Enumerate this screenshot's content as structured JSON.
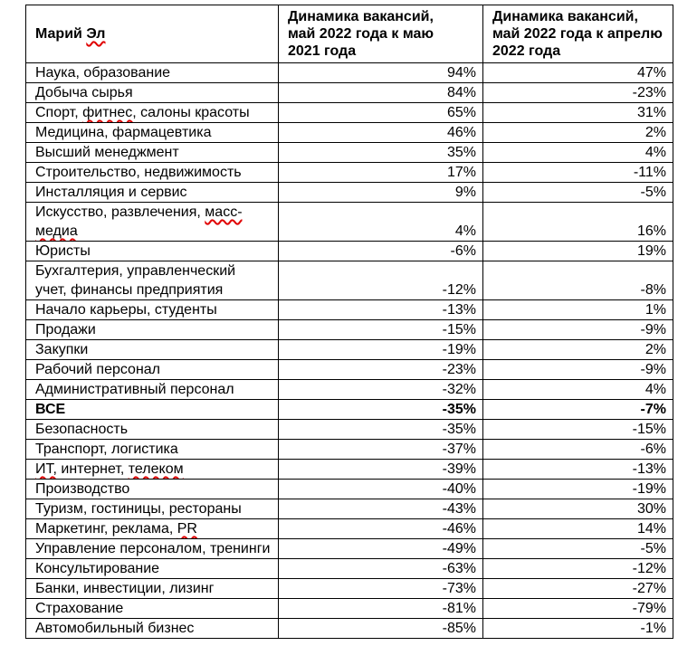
{
  "page": {
    "background": "#ffffff",
    "spellcheck_color": "#e00000",
    "border_color": "#000000"
  },
  "table": {
    "header": {
      "region": "Марий Эл",
      "region_misspelled": [
        "Эл"
      ],
      "col_yoy": "Динамика вакансий,\nмай 2022 года к маю\n2021 года",
      "col_mom": "Динамика вакансий,\nмай 2022 года к апрелю\n2022 года"
    },
    "rows": [
      {
        "category": "Наука, образование",
        "yoy": "94%",
        "mom": "47%"
      },
      {
        "category": "Добыча сырья",
        "yoy": "84%",
        "mom": "-23%"
      },
      {
        "category": "Спорт, фитнес, салоны красоты",
        "yoy": "65%",
        "mom": "31%",
        "misspelled": [
          "фитнес,"
        ]
      },
      {
        "category": "Медицина, фармацевтика",
        "yoy": "46%",
        "mom": "2%"
      },
      {
        "category": "Высший менеджмент",
        "yoy": "35%",
        "mom": "4%"
      },
      {
        "category": "Строительство, недвижимость",
        "yoy": "17%",
        "mom": "-11%"
      },
      {
        "category": "Инсталляция и сервис",
        "yoy": "9%",
        "mom": "-5%"
      },
      {
        "category": "Искусство, развлечения, масс-медиа",
        "yoy": "4%",
        "mom": "16%",
        "misspelled": [
          "масс-медиа"
        ]
      },
      {
        "category": "Юристы",
        "yoy": "-6%",
        "mom": "19%"
      },
      {
        "category": "Бухгалтерия, управленческий учет, финансы предприятия",
        "yoy": "-12%",
        "mom": "-8%"
      },
      {
        "category": "Начало карьеры, студенты",
        "yoy": "-13%",
        "mom": "1%"
      },
      {
        "category": "Продажи",
        "yoy": "-15%",
        "mom": "-9%"
      },
      {
        "category": "Закупки",
        "yoy": "-19%",
        "mom": "2%"
      },
      {
        "category": "Рабочий персонал",
        "yoy": "-23%",
        "mom": "-9%"
      },
      {
        "category": "Административный персонал",
        "yoy": "-32%",
        "mom": "4%"
      },
      {
        "category": "ВСЕ",
        "yoy": "-35%",
        "mom": "-7%",
        "bold": true
      },
      {
        "category": "Безопасность",
        "yoy": "-35%",
        "mom": "-15%"
      },
      {
        "category": "Транспорт, логистика",
        "yoy": "-37%",
        "mom": "-6%"
      },
      {
        "category": "ИТ, интернет, телеком",
        "yoy": "-39%",
        "mom": "-13%",
        "misspelled": [
          "ИТ,",
          "телеком"
        ]
      },
      {
        "category": "Производство",
        "yoy": "-40%",
        "mom": "-19%"
      },
      {
        "category": "Туризм, гостиницы, рестораны",
        "yoy": "-43%",
        "mom": "30%"
      },
      {
        "category": "Маркетинг, реклама, PR",
        "yoy": "-46%",
        "mom": "14%",
        "misspelled": [
          "PR"
        ]
      },
      {
        "category": "Управление персоналом, тренинги",
        "yoy": "-49%",
        "mom": "-5%"
      },
      {
        "category": "Консультирование",
        "yoy": "-63%",
        "mom": "-12%"
      },
      {
        "category": "Банки, инвестиции, лизинг",
        "yoy": "-73%",
        "mom": "-27%"
      },
      {
        "category": "Страхование",
        "yoy": "-81%",
        "mom": "-79%"
      },
      {
        "category": "Автомобильный бизнес",
        "yoy": "-85%",
        "mom": "-1%"
      }
    ]
  }
}
